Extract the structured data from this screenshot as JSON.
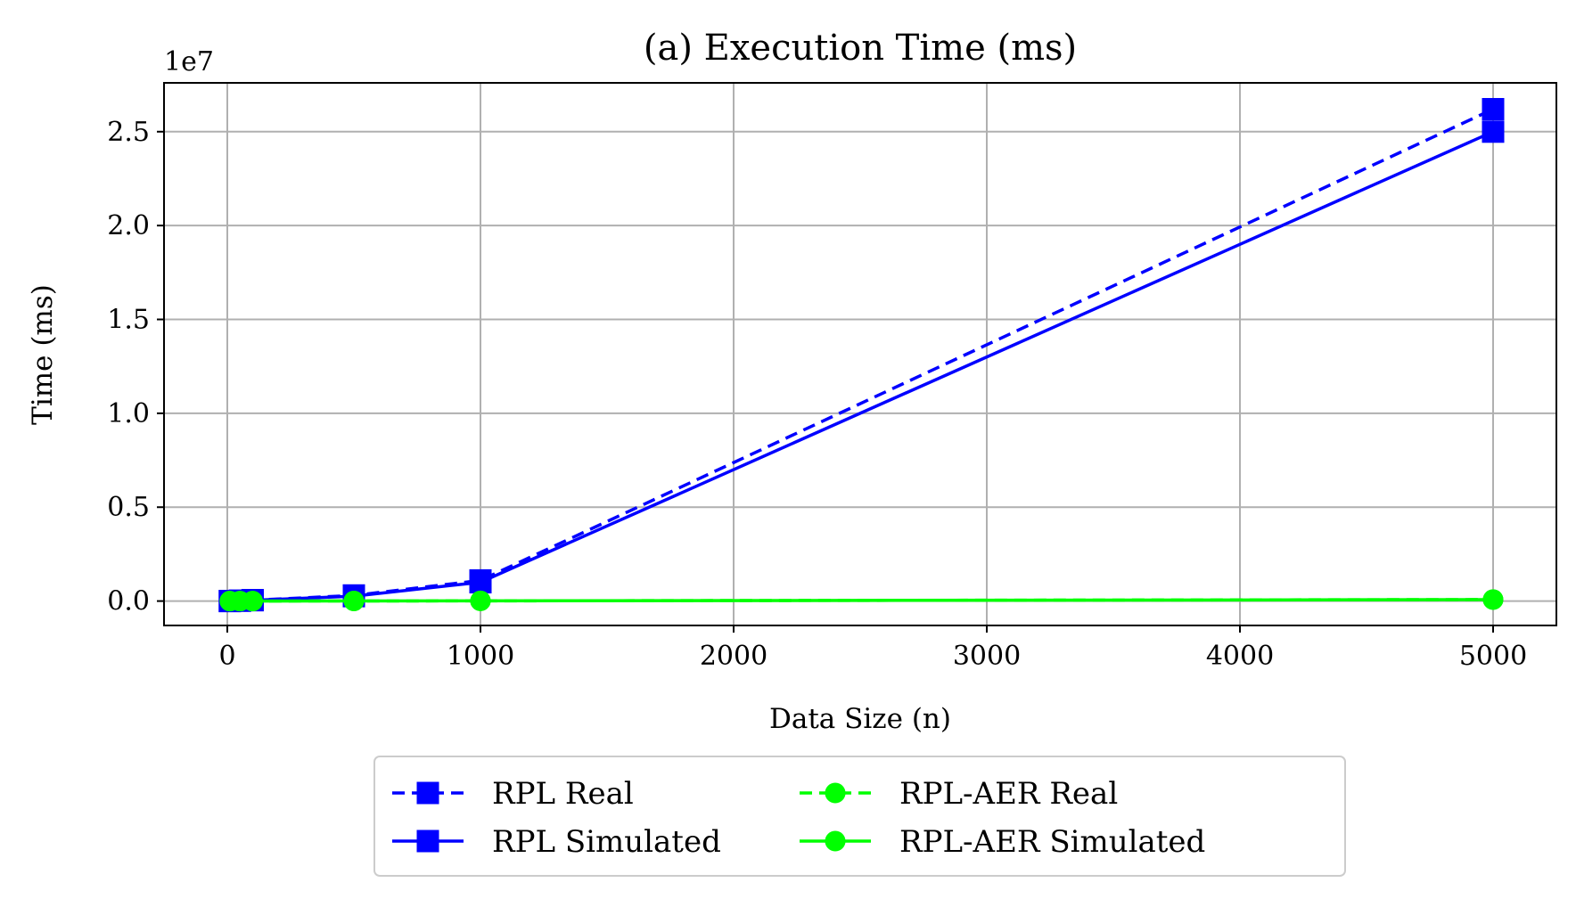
{
  "chart_data": {
    "type": "line",
    "title": "(a) Execution Time (ms)",
    "xlabel": "Data Size (n)",
    "ylabel": "Time (ms)",
    "y_offset_text": "1e7",
    "y_scale_factor": 10000000,
    "xlim": [
      -250,
      5250
    ],
    "ylim": [
      -1300000,
      27600000
    ],
    "x_ticks": [
      0,
      1000,
      2000,
      3000,
      4000,
      5000
    ],
    "x_tick_labels": [
      "0",
      "1000",
      "2000",
      "3000",
      "4000",
      "5000"
    ],
    "y_ticks": [
      0,
      5000000,
      10000000,
      15000000,
      20000000,
      25000000
    ],
    "y_tick_labels": [
      "0.0",
      "0.5",
      "1.0",
      "1.5",
      "2.0",
      "2.5"
    ],
    "grid": true,
    "legend_position": "below-center",
    "legend_columns": 2,
    "series": [
      {
        "name": "RPL Real",
        "color": "#0000ff",
        "line_style": "dashed",
        "marker": "square",
        "x": [
          10,
          50,
          100,
          500,
          1000,
          5000
        ],
        "y": [
          1000,
          20000,
          50000,
          300000,
          1100000,
          26200000
        ]
      },
      {
        "name": "RPL Simulated",
        "color": "#0000ff",
        "line_style": "solid",
        "marker": "square",
        "x": [
          10,
          50,
          100,
          500,
          1000,
          5000
        ],
        "y": [
          1000,
          18000,
          45000,
          260000,
          1000000,
          25000000
        ]
      },
      {
        "name": "RPL-AER Real",
        "color": "#00ff00",
        "line_style": "dashed",
        "marker": "circle",
        "x": [
          10,
          50,
          100,
          500,
          1000,
          5000
        ],
        "y": [
          100,
          500,
          1000,
          5000,
          12000,
          80000
        ]
      },
      {
        "name": "RPL-AER Simulated",
        "color": "#00ff00",
        "line_style": "solid",
        "marker": "circle",
        "x": [
          10,
          50,
          100,
          500,
          1000,
          5000
        ],
        "y": [
          100,
          400,
          900,
          4500,
          11000,
          75000
        ]
      }
    ]
  }
}
